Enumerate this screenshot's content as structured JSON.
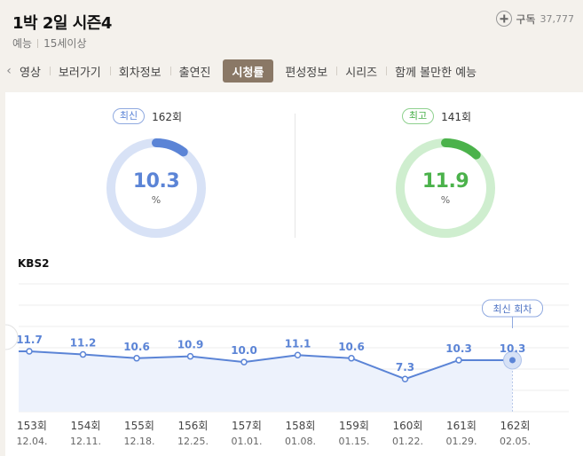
{
  "header": {
    "title": "1박 2일 시즌4",
    "genre": "예능",
    "rating": "15세이상",
    "subscribe_label": "구독",
    "subscribe_count": "37,777"
  },
  "tabs": [
    {
      "label": "영상",
      "active": false
    },
    {
      "label": "보러가기",
      "active": false
    },
    {
      "label": "회차정보",
      "active": false
    },
    {
      "label": "출연진",
      "active": false
    },
    {
      "label": "시청률",
      "active": true
    },
    {
      "label": "편성정보",
      "active": false
    },
    {
      "label": "시리즈",
      "active": false
    },
    {
      "label": "함께 볼만한 예능",
      "active": false
    }
  ],
  "stats": {
    "latest": {
      "badge": "최신",
      "episode": "162회",
      "value": "10.3",
      "unit": "%",
      "ring_fraction": 0.103,
      "color": "#5b84d6",
      "track": "#d8e2f6"
    },
    "best": {
      "badge": "최고",
      "episode": "141회",
      "value": "11.9",
      "unit": "%",
      "ring_fraction": 0.119,
      "color": "#4bb24b",
      "track": "#cfeecf"
    }
  },
  "chart_data": {
    "type": "line",
    "title": "KBS2",
    "categories": [
      "153회",
      "154회",
      "155회",
      "156회",
      "157회",
      "158회",
      "159회",
      "160회",
      "161회",
      "162회"
    ],
    "dates": [
      "12.04.",
      "12.11.",
      "12.18.",
      "12.25.",
      "01.01.",
      "01.08.",
      "01.15.",
      "01.22.",
      "01.29.",
      "02.05."
    ],
    "values": [
      11.7,
      11.2,
      10.6,
      10.9,
      10.0,
      11.1,
      10.6,
      7.3,
      10.3,
      10.3
    ],
    "annotation": "최신 회차",
    "line_color": "#5b84d6",
    "fill_color": "#edf2fc"
  }
}
